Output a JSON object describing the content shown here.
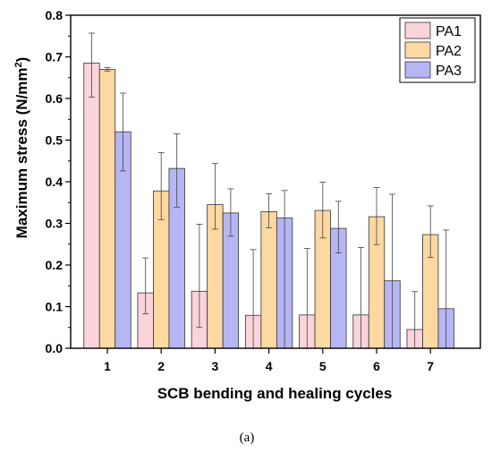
{
  "chart_data": {
    "type": "bar",
    "title": "",
    "xlabel": "SCB bending and healing cycles",
    "ylabel_main": "Maximum stress (N/mm",
    "ylabel_sup": "2",
    "ylabel_end": ")",
    "caption": "(a)",
    "categories": [
      "1",
      "2",
      "3",
      "4",
      "5",
      "6",
      "7"
    ],
    "ylim": [
      0,
      0.8
    ],
    "yticks": [
      "0.0",
      "0.1",
      "0.2",
      "0.3",
      "0.4",
      "0.5",
      "0.6",
      "0.7",
      "0.8"
    ],
    "legend_position": "top-right",
    "series": [
      {
        "name": "PA1",
        "color": "#FBD3DB",
        "values": [
          0.685,
          0.133,
          0.137,
          0.079,
          0.08,
          0.08,
          0.045
        ],
        "err_low": [
          0.603,
          0.083,
          0.05,
          0.0,
          0.0,
          0.0,
          0.0
        ],
        "err_high": [
          0.757,
          0.217,
          0.298,
          0.237,
          0.24,
          0.242,
          0.136
        ]
      },
      {
        "name": "PA2",
        "color": "#FDD8A1",
        "values": [
          0.67,
          0.378,
          0.345,
          0.328,
          0.331,
          0.316,
          0.273
        ],
        "err_low": [
          0.666,
          0.309,
          0.286,
          0.289,
          0.265,
          0.249,
          0.218
        ],
        "err_high": [
          0.674,
          0.47,
          0.444,
          0.371,
          0.399,
          0.386,
          0.342
        ]
      },
      {
        "name": "PA3",
        "color": "#B6B6F4",
        "values": [
          0.52,
          0.432,
          0.325,
          0.313,
          0.288,
          0.162,
          0.095
        ],
        "err_low": [
          0.426,
          0.339,
          0.269,
          0.0,
          0.229,
          0.0,
          0.0
        ],
        "err_high": [
          0.613,
          0.515,
          0.383,
          0.379,
          0.353,
          0.37,
          0.284
        ]
      }
    ]
  }
}
